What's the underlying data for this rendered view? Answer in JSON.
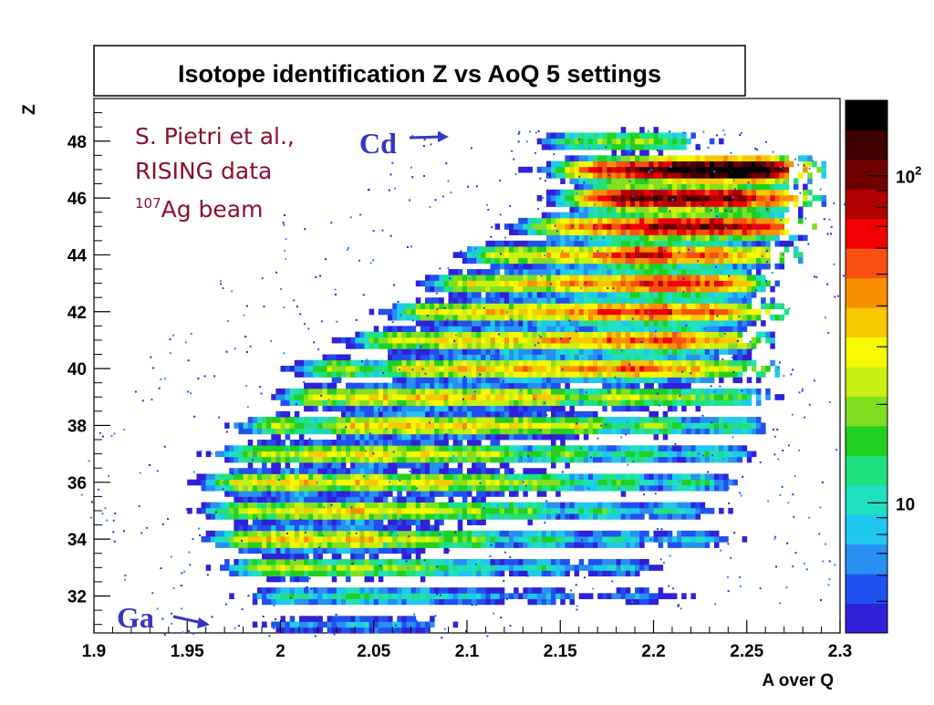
{
  "chart_data": {
    "type": "heatmap",
    "title": "Isotope identification Z vs AoQ 5 settings",
    "xlabel": "A over Q",
    "ylabel": "Z",
    "xlim": [
      1.9,
      2.3
    ],
    "ylim": [
      30.7,
      49.5
    ],
    "x_ticks": [
      "1.9",
      "1.95",
      "2",
      "2.05",
      "2.1",
      "2.15",
      "2.2",
      "2.25",
      "2.3"
    ],
    "y_ticks": [
      "32",
      "34",
      "36",
      "38",
      "40",
      "42",
      "44",
      "46",
      "48"
    ],
    "colorbar": {
      "scale": "log",
      "labels": [
        "10",
        "10^2"
      ],
      "range": [
        4,
        170
      ]
    },
    "grid": false,
    "bands": [
      {
        "z": 31,
        "aoq_range": [
          1.965,
          2.1
        ],
        "peaks": [
          [
            2.01,
            4
          ],
          [
            2.04,
            5
          ],
          [
            2.07,
            4
          ]
        ]
      },
      {
        "z": 32,
        "aoq_range": [
          1.955,
          2.265
        ],
        "peaks": [
          [
            2.005,
            9
          ],
          [
            2.04,
            10
          ],
          [
            2.07,
            8
          ],
          [
            2.1,
            6
          ],
          [
            2.14,
            5
          ],
          [
            2.19,
            4
          ]
        ]
      },
      {
        "z": 33,
        "aoq_range": [
          1.945,
          2.27
        ],
        "peaks": [
          [
            1.99,
            14
          ],
          [
            2.01,
            18
          ],
          [
            2.04,
            20
          ],
          [
            2.07,
            15
          ],
          [
            2.1,
            10
          ],
          [
            2.14,
            8
          ],
          [
            2.18,
            6
          ]
        ]
      },
      {
        "z": 34,
        "aoq_range": [
          1.935,
          2.27
        ],
        "peaks": [
          [
            1.985,
            25
          ],
          [
            2.01,
            30
          ],
          [
            2.04,
            32
          ],
          [
            2.07,
            22
          ],
          [
            2.1,
            15
          ],
          [
            2.14,
            11
          ],
          [
            2.18,
            8
          ],
          [
            2.22,
            6
          ]
        ]
      },
      {
        "z": 35,
        "aoq_range": [
          1.925,
          2.28
        ],
        "peaks": [
          [
            1.98,
            20
          ],
          [
            2.01,
            28
          ],
          [
            2.04,
            30
          ],
          [
            2.07,
            24
          ],
          [
            2.1,
            18
          ],
          [
            2.13,
            14
          ],
          [
            2.17,
            11
          ],
          [
            2.21,
            8
          ]
        ]
      },
      {
        "z": 36,
        "aoq_range": [
          1.915,
          2.285
        ],
        "peaks": [
          [
            1.98,
            26
          ],
          [
            2.01,
            32
          ],
          [
            2.045,
            33
          ],
          [
            2.08,
            28
          ],
          [
            2.11,
            22
          ],
          [
            2.14,
            18
          ],
          [
            2.18,
            14
          ],
          [
            2.22,
            11
          ]
        ]
      },
      {
        "z": 37,
        "aoq_range": [
          1.925,
          2.28
        ],
        "peaks": [
          [
            1.99,
            20
          ],
          [
            2.02,
            26
          ],
          [
            2.05,
            29
          ],
          [
            2.08,
            25
          ],
          [
            2.11,
            21
          ],
          [
            2.15,
            17
          ],
          [
            2.19,
            13
          ],
          [
            2.23,
            10
          ]
        ]
      },
      {
        "z": 38,
        "aoq_range": [
          1.93,
          2.275
        ],
        "peaks": [
          [
            2.0,
            20
          ],
          [
            2.04,
            30
          ],
          [
            2.07,
            32
          ],
          [
            2.1,
            29
          ],
          [
            2.13,
            26
          ],
          [
            2.16,
            22
          ],
          [
            2.2,
            17
          ],
          [
            2.24,
            12
          ]
        ]
      },
      {
        "z": 39,
        "aoq_range": [
          1.945,
          2.27
        ],
        "peaks": [
          [
            2.02,
            22
          ],
          [
            2.05,
            30
          ],
          [
            2.08,
            33
          ],
          [
            2.11,
            32
          ],
          [
            2.14,
            29
          ],
          [
            2.18,
            24
          ],
          [
            2.21,
            18
          ],
          [
            2.24,
            13
          ]
        ]
      },
      {
        "z": 40,
        "aoq_range": [
          1.955,
          2.265
        ],
        "peaks": [
          [
            2.03,
            20
          ],
          [
            2.07,
            28
          ],
          [
            2.1,
            33
          ],
          [
            2.13,
            36
          ],
          [
            2.16,
            38
          ],
          [
            2.19,
            52
          ],
          [
            2.22,
            34
          ],
          [
            2.25,
            16
          ]
        ]
      },
      {
        "z": 41,
        "aoq_range": [
          1.97,
          2.265
        ],
        "peaks": [
          [
            2.06,
            22
          ],
          [
            2.09,
            30
          ],
          [
            2.12,
            34
          ],
          [
            2.15,
            38
          ],
          [
            2.18,
            48
          ],
          [
            2.21,
            60
          ],
          [
            2.24,
            30
          ]
        ]
      },
      {
        "z": 42,
        "aoq_range": [
          1.985,
          2.27
        ],
        "peaks": [
          [
            2.08,
            24
          ],
          [
            2.11,
            30
          ],
          [
            2.14,
            36
          ],
          [
            2.17,
            52
          ],
          [
            2.2,
            62
          ],
          [
            2.23,
            48
          ],
          [
            2.26,
            18
          ]
        ]
      },
      {
        "z": 43,
        "aoq_range": [
          1.995,
          2.275
        ],
        "peaks": [
          [
            2.1,
            24
          ],
          [
            2.13,
            30
          ],
          [
            2.16,
            40
          ],
          [
            2.19,
            55
          ],
          [
            2.215,
            60
          ],
          [
            2.24,
            38
          ]
        ]
      },
      {
        "z": 44,
        "aoq_range": [
          2.015,
          2.28
        ],
        "peaks": [
          [
            2.12,
            24
          ],
          [
            2.15,
            32
          ],
          [
            2.18,
            48
          ],
          [
            2.2,
            66
          ],
          [
            2.23,
            52
          ],
          [
            2.26,
            26
          ]
        ]
      },
      {
        "z": 45,
        "aoq_range": [
          2.03,
          2.285
        ],
        "peaks": [
          [
            2.15,
            30
          ],
          [
            2.175,
            50
          ],
          [
            2.2,
            80
          ],
          [
            2.225,
            82
          ],
          [
            2.25,
            60
          ],
          [
            2.27,
            28
          ]
        ]
      },
      {
        "z": 46,
        "aoq_range": [
          2.075,
          2.29
        ],
        "peaks": [
          [
            2.17,
            40
          ],
          [
            2.19,
            90
          ],
          [
            2.215,
            92
          ],
          [
            2.24,
            85
          ],
          [
            2.265,
            45
          ]
        ]
      },
      {
        "z": 47,
        "aoq_range": [
          2.085,
          2.29
        ],
        "peaks": [
          [
            2.165,
            35
          ],
          [
            2.185,
            70
          ],
          [
            2.21,
            110
          ],
          [
            2.23,
            120
          ],
          [
            2.25,
            170
          ],
          [
            2.27,
            40
          ]
        ]
      },
      {
        "z": 48,
        "aoq_range": [
          2.1,
          2.235
        ],
        "peaks": [
          [
            2.16,
            12
          ],
          [
            2.185,
            14
          ],
          [
            2.205,
            12
          ]
        ]
      }
    ]
  },
  "annotations": {
    "credit_line1": "S. Pietri et al.,",
    "credit_line2": "RISING data",
    "credit_sup": "107",
    "credit_line3": "Ag beam",
    "cd_label": "Cd",
    "ga_label": "Ga"
  },
  "colors": {
    "palette": [
      "#3020d8",
      "#2050f0",
      "#2890f0",
      "#20c8f0",
      "#20e0c0",
      "#20e080",
      "#20d020",
      "#80e020",
      "#c8f010",
      "#f8f800",
      "#f8c800",
      "#f89000",
      "#f85010",
      "#f00000",
      "#b00000",
      "#700000",
      "#400000",
      "#000000"
    ],
    "annotation": "#8b0f2e",
    "element_label": "#3434c8"
  }
}
